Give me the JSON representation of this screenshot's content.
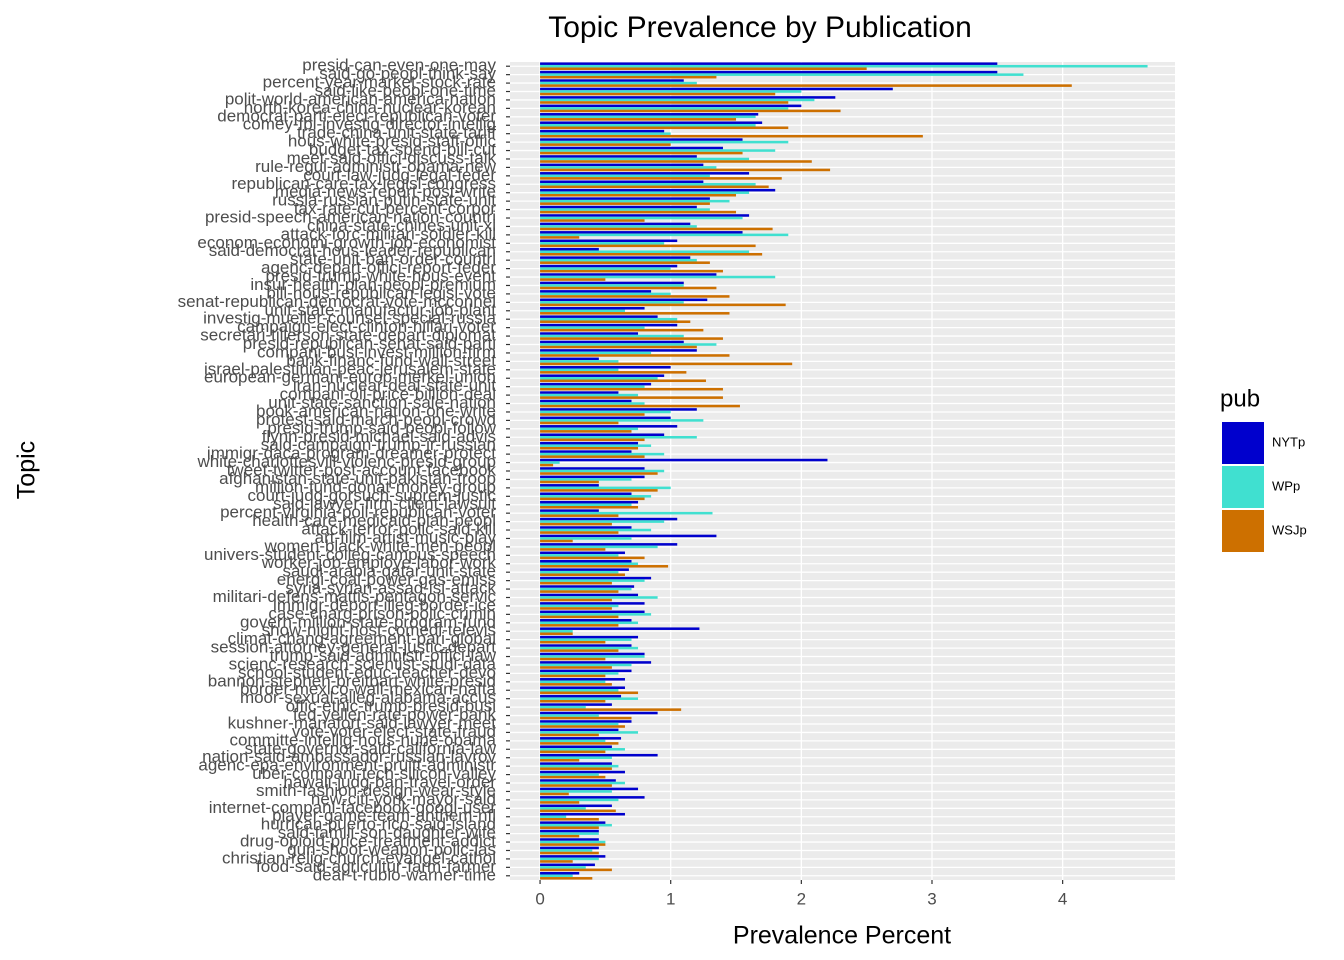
{
  "chart_data": {
    "type": "bar",
    "orientation": "horizontal",
    "title": "Topic Prevalence by Publication",
    "x_label": "Prevalence Percent",
    "y_label": "Topic",
    "legend_title": "pub",
    "legend_position": "right",
    "grid": true,
    "xlim": [
      -0.23,
      4.86
    ],
    "xticks": [
      0,
      1,
      2,
      3,
      4
    ],
    "categories": [
      "presid-can-even-one-may",
      "said-go-peopl-think-say",
      "percent-year-market-stock-rate",
      "said-like-peopl-one-time",
      "polit-world-american-america-nation",
      "north-korea-china-nuclear-korean",
      "democrat-parti-elect-republican-voter",
      "comey-fbi-investig-director-intellig",
      "trade-china-unit-state-tariff",
      "hous-white-presid-staff-offic",
      "budget-tax-spend-bill-cut",
      "meet-said-offici-discuss-talk",
      "rule-regul-administr-obama-new",
      "court-law-judg-legal-feder",
      "republican-care-tax-legisl-congress",
      "media-news-report-post-write",
      "russia-russian-putin-state-unit",
      "tax-rate-cut-percent-corpor",
      "presid-speech-american-nation-countri",
      "china-state-chines-unit-xi",
      "attack-forc-militari-soldier-kill",
      "econom-economi-growth-job-economist",
      "said-democrat-hous-leader-republican",
      "state-unit-ban-order-countri",
      "agenc-depart-offici-report-feder",
      "presid-trump-white-hous-event",
      "insur-health-plan-peopl-premium",
      "bill-hous-republican-legisl-vote",
      "senat-republican-democrat-vote-mcconnel",
      "unit-state-manufactur-job-plant",
      "investig-mueller-counsel-special-russia",
      "campaign-elect-clinton-hillari-voter",
      "secretari-tillerson-state-depart-diplomat",
      "presid-republican-senat-said-parti",
      "compani-busi-invest-million-firm",
      "bank-financ-fund-wall-street",
      "israel-palestinian-peac-jerusalem-state",
      "european-germani-europ-merkel-union",
      "iran-nuclear-deal-state-unit",
      "compani-oil-price-billion-deal",
      "unit-state-sanction-sale-nation",
      "book-american-nation-one-write",
      "protest-said-march-peopl-crowd",
      "presid-trump-said-peopl-follow",
      "flynn-presid-michael-said-advis",
      "said-campaign-trump-jr-russian",
      "immigr-daca-program-dreamer-protect",
      "white-charlottesvill-violenc-presid-group",
      "tweet-twitter-post-account-facebook",
      "afghanistan-state-unit-pakistan-troop",
      "million-fund-donat-money-group",
      "court-judg-gorsuch-suprem-justic",
      "said-lawyer-firm-client-lawsuit",
      "percent-virginia-poll-republican-voter",
      "health-care-medicaid-plan-peopl",
      "attack-terror-polic-said-kill",
      "art-film-artist-music-play",
      "women-black-white-men-peopl",
      "univers-student-colleg-campus-speech",
      "worker-job-employe-labor-work",
      "saudi-arabia-qatar-unit-state",
      "energi-coal-power-gas-emiss",
      "syria-syrian-assad-isi-attack",
      "militari-defens-mattis-pentagon-servic",
      "immigr-deport-illeg-border-ice",
      "case-charg-prison-polic-crimin",
      "govern-million-state-program-fund",
      "show-night-host-comedi-televis",
      "climat-chang-agreement-pari-global",
      "session-attorney-general-justic-depart",
      "trump-said-administr-offici-law",
      "scienc-research-scientist-studi-data",
      "school-student-educ-teacher-devo",
      "bannon-stephen-breitbart-white-presid",
      "border-mexico-wall-mexican-nafta",
      "moor-sexual-alleg-alabama-accus",
      "offic-ethic-trump-presid-busi",
      "fed-yellen-rate-power-bank",
      "kushner-manafort-said-lawyer-meet",
      "vote-voter-elect-state-fraud",
      "committe-intellig-hous-nune-obama",
      "state-governor-said-california-law",
      "nation-said-ambassador-russian-lavrov",
      "agenc-epa-environment-pruitt-administr",
      "uber-compani-tech-silicon-valley",
      "hawaii-judg-ban-travel-order",
      "smith-fashion-design-wear-style",
      "new-citi-york-mayor-said",
      "internet-compani-facebook-googl-user",
      "player-game-team-anthem-nfl",
      "hurrican-puerto-rico-said-island",
      "said-famili-son-daughter-wife",
      "drug-opioid-price-treatment-addict",
      "gun-shoot-weapon-polic-las",
      "christian-relig-church-evangel-cathol",
      "food-said-agricultur-farm-farmer",
      "dear-t-rubio-warner-time"
    ],
    "series": [
      {
        "name": "NYTp",
        "color": "#0000cd",
        "values": [
          3.5,
          3.5,
          1.1,
          2.7,
          2.26,
          2.0,
          1.67,
          1.7,
          0.95,
          1.55,
          1.4,
          1.2,
          1.25,
          1.6,
          1.25,
          1.8,
          1.3,
          1.2,
          1.6,
          1.15,
          1.55,
          1.05,
          0.45,
          1.15,
          1.05,
          1.35,
          1.1,
          0.85,
          1.28,
          0.8,
          0.9,
          1.05,
          0.75,
          1.1,
          1.2,
          0.45,
          1.0,
          0.95,
          0.85,
          0.6,
          0.7,
          1.2,
          1.0,
          1.05,
          0.95,
          0.75,
          0.7,
          2.2,
          0.8,
          0.8,
          0.45,
          0.7,
          0.75,
          0.45,
          1.05,
          0.7,
          1.35,
          1.05,
          0.65,
          0.7,
          0.68,
          0.85,
          0.72,
          0.75,
          0.8,
          0.8,
          0.7,
          1.22,
          0.75,
          0.7,
          0.8,
          0.85,
          0.7,
          0.65,
          0.65,
          0.62,
          0.55,
          0.9,
          0.7,
          0.6,
          0.62,
          0.55,
          0.9,
          0.55,
          0.65,
          0.58,
          0.75,
          0.8,
          0.55,
          0.65,
          0.5,
          0.45,
          0.45,
          0.45,
          0.5,
          0.42,
          0.3
        ]
      },
      {
        "name": "WPp",
        "color": "#40e0d0",
        "values": [
          4.65,
          3.7,
          1.2,
          2.0,
          2.1,
          1.9,
          1.65,
          1.65,
          1.0,
          1.9,
          1.8,
          1.6,
          1.35,
          1.3,
          1.65,
          1.6,
          1.45,
          1.3,
          1.55,
          1.2,
          1.9,
          0.95,
          1.6,
          1.2,
          1.0,
          1.8,
          1.1,
          1.0,
          1.1,
          0.65,
          1.05,
          0.8,
          1.1,
          1.35,
          0.85,
          0.6,
          0.6,
          0.9,
          0.8,
          0.75,
          0.8,
          1.0,
          1.25,
          0.75,
          1.2,
          0.85,
          0.95,
          0.15,
          0.95,
          0.7,
          1.0,
          0.85,
          0.7,
          1.32,
          0.95,
          0.85,
          0.7,
          0.9,
          0.6,
          0.75,
          0.6,
          0.8,
          0.7,
          0.9,
          0.6,
          0.85,
          0.75,
          0.25,
          0.7,
          0.75,
          0.8,
          0.7,
          0.6,
          0.5,
          0.6,
          0.75,
          0.35,
          0.45,
          0.6,
          0.75,
          0.5,
          0.65,
          0.55,
          0.6,
          0.45,
          0.65,
          0.55,
          0.6,
          0.35,
          0.2,
          0.55,
          0.45,
          0.5,
          0.4,
          0.45,
          0.35,
          0.25
        ]
      },
      {
        "name": "WSJp",
        "color": "#cd7000",
        "values": [
          2.5,
          1.35,
          4.07,
          1.8,
          1.9,
          2.3,
          1.5,
          1.9,
          2.93,
          1.0,
          1.55,
          2.08,
          2.22,
          1.85,
          1.75,
          1.5,
          1.3,
          1.5,
          0.8,
          1.78,
          0.3,
          1.65,
          1.7,
          1.3,
          1.4,
          0.5,
          1.35,
          1.45,
          1.88,
          1.45,
          1.15,
          1.25,
          1.4,
          1.2,
          1.45,
          1.93,
          1.12,
          1.27,
          1.4,
          1.4,
          1.53,
          0.8,
          0.6,
          0.7,
          0.8,
          0.75,
          0.8,
          0.1,
          0.9,
          0.45,
          0.9,
          0.8,
          0.75,
          0.6,
          0.55,
          0.6,
          0.25,
          0.5,
          0.8,
          0.98,
          0.65,
          0.55,
          0.6,
          0.55,
          0.55,
          0.6,
          0.6,
          0.25,
          0.5,
          0.6,
          0.5,
          0.55,
          0.5,
          0.55,
          0.75,
          0.5,
          1.08,
          0.7,
          0.65,
          0.45,
          0.6,
          0.5,
          0.3,
          0.55,
          0.5,
          0.55,
          0.22,
          0.3,
          0.58,
          0.45,
          0.45,
          0.3,
          0.5,
          0.45,
          0.25,
          0.55,
          0.4
        ]
      }
    ]
  }
}
